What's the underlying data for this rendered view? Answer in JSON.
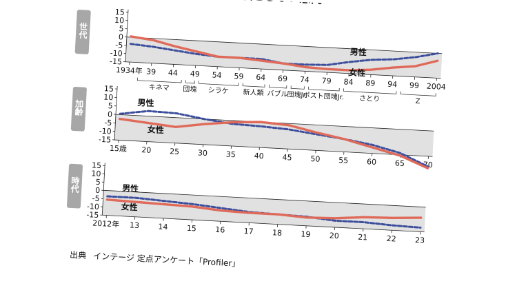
{
  "header": {
    "title": "結婚観：結婚を必須としない意向"
  },
  "colors": {
    "male": "#3d4f9c",
    "female": "#e06a5a",
    "band": "#e1e1e1",
    "tab": "#a7a7a7"
  },
  "footer": {
    "source_label": "出典",
    "source_text": "インテージ 定点アンケート「Profiler」"
  },
  "chart_data": [
    {
      "type": "line",
      "panel_label": "世代",
      "x_tick_labels": [
        "1934年",
        "39",
        "44",
        "49",
        "54",
        "59",
        "64",
        "69",
        "74",
        "79",
        "84",
        "89",
        "94",
        "99",
        "2004"
      ],
      "x": [
        1934,
        1939,
        1944,
        1949,
        1954,
        1959,
        1964,
        1969,
        1974,
        1979,
        1984,
        1989,
        1994,
        1999,
        2004
      ],
      "ylim": [
        -15,
        15
      ],
      "y_ticks": [
        15,
        10,
        5,
        0,
        -5,
        -10,
        -15
      ],
      "groups": [
        {
          "label": "キネマ",
          "from": 1936,
          "to": 1946
        },
        {
          "label": "団塊",
          "from": 1947,
          "to": 1949
        },
        {
          "label": "シラケ",
          "from": 1950,
          "to": 1959
        },
        {
          "label": "新人類",
          "from": 1960,
          "to": 1965
        },
        {
          "label": "バブル",
          "from": 1966,
          "to": 1970
        },
        {
          "label": "団塊Jr.",
          "from": 1971,
          "to": 1974
        },
        {
          "label": "ポスト団塊Jr.",
          "from": 1975,
          "to": 1982
        },
        {
          "label": "さとり",
          "from": 1983,
          "to": 1995
        },
        {
          "label": "Z",
          "from": 1996,
          "to": 2004
        }
      ],
      "series": [
        {
          "name": "男性",
          "values": [
            -4,
            -5,
            -6.5,
            -8,
            -9,
            -9,
            -9,
            -11,
            -11,
            -10.5,
            -8,
            -6,
            -5,
            -3,
            0
          ]
        },
        {
          "name": "女性",
          "values": [
            0.5,
            -1,
            -4,
            -6.5,
            -9,
            -9,
            -10,
            -11,
            -12.5,
            -13,
            -13,
            -12,
            -10,
            -8.5,
            -4.5
          ]
        }
      ]
    },
    {
      "type": "line",
      "panel_label": "加齢",
      "x_tick_labels": [
        "15歳",
        "20",
        "25",
        "30",
        "35",
        "40",
        "45",
        "50",
        "55",
        "60",
        "65",
        "70"
      ],
      "x": [
        15,
        20,
        25,
        30,
        35,
        40,
        45,
        50,
        55,
        60,
        65,
        70
      ],
      "ylim": [
        -15,
        15
      ],
      "y_ticks": [
        15,
        10,
        5,
        0,
        -5,
        -10,
        -15
      ],
      "series": [
        {
          "name": "男性",
          "values": [
            0.5,
            3,
            2.5,
            0,
            -2,
            -2.5,
            -3.5,
            -5.5,
            -7.5,
            -10,
            -14,
            -21
          ]
        },
        {
          "name": "女性",
          "values": [
            -2.5,
            -4,
            -5.5,
            -3,
            -1,
            0,
            -1,
            -4.5,
            -7.5,
            -11.5,
            -15.5,
            -22
          ]
        }
      ]
    },
    {
      "type": "line",
      "panel_label": "時代",
      "x_tick_labels": [
        "2012年",
        "13",
        "14",
        "15",
        "16",
        "17",
        "18",
        "19",
        "20",
        "21",
        "22",
        "23"
      ],
      "x": [
        2012,
        2013,
        2014,
        2015,
        2016,
        2017,
        2018,
        2019,
        2020,
        2021,
        2022,
        2023
      ],
      "ylim": [
        -15,
        15
      ],
      "y_ticks": [
        15,
        10,
        5,
        0,
        -5,
        -10,
        -15
      ],
      "series": [
        {
          "name": "男性",
          "values": [
            -3.5,
            -3.5,
            -4.5,
            -5.5,
            -7,
            -8.5,
            -9,
            -9.5,
            -11,
            -11,
            -12,
            -12.5
          ]
        },
        {
          "name": "女性",
          "values": [
            -5.5,
            -6,
            -6.5,
            -7,
            -8.5,
            -9,
            -9,
            -10,
            -9.5,
            -8,
            -7.5,
            -6.5
          ]
        }
      ]
    }
  ]
}
